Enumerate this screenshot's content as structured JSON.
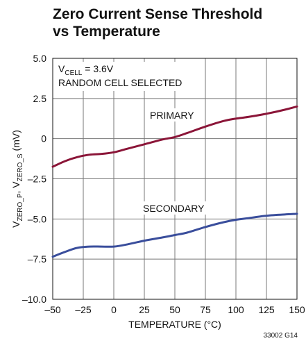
{
  "figure_id": "33002 G14",
  "chart_data": {
    "type": "line",
    "title_lines": [
      "Zero Current Sense Threshold",
      "vs Temperature"
    ],
    "xlabel": "TEMPERATURE (°C)",
    "ylabel": {
      "prefix1": "V",
      "sub1": "ZERO_P",
      "sep": ", V",
      "sub2": "ZERO_S",
      "suffix": " (mV)"
    },
    "xlim": [
      -50,
      150
    ],
    "ylim": [
      -10.0,
      5.0
    ],
    "x_ticks": [
      -50,
      -25,
      0,
      25,
      50,
      75,
      100,
      125,
      150
    ],
    "x_tick_labels": [
      "–50",
      "–25",
      "0",
      "25",
      "50",
      "75",
      "100",
      "125",
      "150"
    ],
    "y_ticks": [
      5.0,
      2.5,
      0,
      -2.5,
      -5.0,
      -7.5,
      -10.0
    ],
    "y_tick_labels": [
      "5.0",
      "2.5",
      "0",
      "–2.5",
      "–5.0",
      "–7.5",
      "–10.0"
    ],
    "grid": true,
    "annotations": {
      "condition1_main": "V",
      "condition1_sub": "CELL",
      "condition1_rest": " = 3.6V",
      "condition2": "RANDOM CELL SELECTED"
    },
    "series": [
      {
        "name": "PRIMARY",
        "color": "#8b1538",
        "x": [
          -50,
          -40,
          -30,
          -20,
          -10,
          0,
          10,
          25,
          40,
          50,
          60,
          75,
          90,
          100,
          110,
          125,
          140,
          150
        ],
        "y": [
          -1.75,
          -1.4,
          -1.15,
          -1.0,
          -0.95,
          -0.85,
          -0.65,
          -0.35,
          -0.05,
          0.1,
          0.35,
          0.75,
          1.1,
          1.25,
          1.35,
          1.55,
          1.8,
          2.0
        ]
      },
      {
        "name": "SECONDARY",
        "color": "#3a4e9c",
        "x": [
          -50,
          -40,
          -30,
          -20,
          -10,
          0,
          10,
          25,
          40,
          50,
          60,
          75,
          90,
          100,
          110,
          125,
          140,
          150
        ],
        "y": [
          -7.35,
          -7.05,
          -6.8,
          -6.72,
          -6.72,
          -6.72,
          -6.6,
          -6.35,
          -6.15,
          -6.0,
          -5.85,
          -5.5,
          -5.2,
          -5.05,
          -4.95,
          -4.8,
          -4.72,
          -4.68
        ]
      }
    ]
  }
}
